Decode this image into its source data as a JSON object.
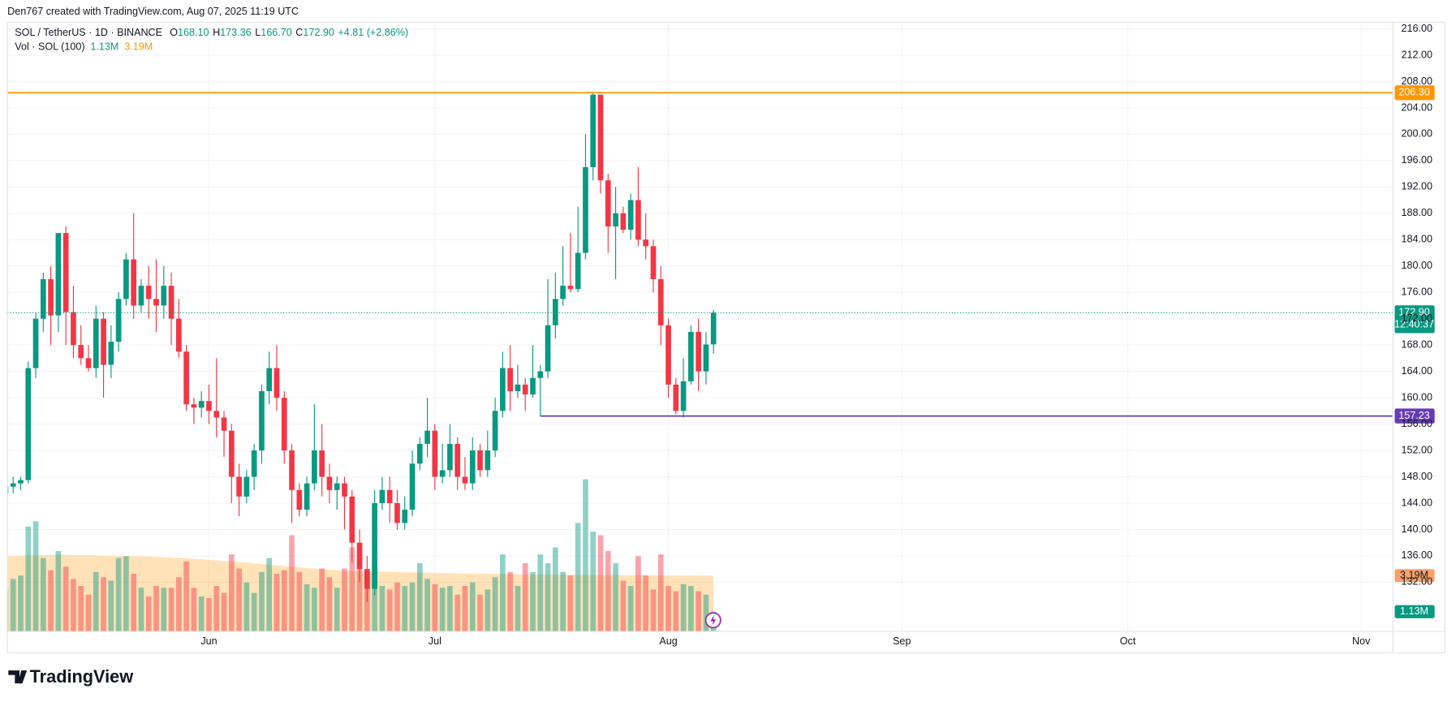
{
  "header": "Den767 created with TradingView.com, Aug 07, 2025 11:19 UTC",
  "brand": "TradingView",
  "chart_data": {
    "type": "candlestick",
    "symbol": "SOL / TetherUS · 1D · BINANCE",
    "legend_ohlc": [
      {
        "key": "O",
        "value": "168.10"
      },
      {
        "key": "H",
        "value": "173.36"
      },
      {
        "key": "L",
        "value": "166.70"
      },
      {
        "key": "C",
        "value": "172.90"
      }
    ],
    "change": "+4.81 (+2.86%)",
    "volume_title": "Vol · SOL (100)",
    "up_color": "#089981",
    "down_color": "#f23645",
    "open": [
      145.5,
      146.5,
      147,
      147.5,
      164.5,
      172,
      178,
      172.5,
      185,
      173,
      168,
      166,
      164.5,
      172,
      165,
      168.5,
      175,
      181,
      174,
      177,
      175,
      174,
      177,
      172,
      167,
      159,
      158.5,
      159.5,
      158,
      157,
      155,
      148,
      145,
      148,
      152,
      161,
      164.5,
      160,
      152,
      146,
      143,
      147,
      152,
      148,
      146,
      147,
      145,
      138,
      134,
      131,
      144,
      146,
      144,
      141,
      143,
      150,
      153,
      155,
      148,
      149,
      153,
      148,
      147,
      152,
      149,
      152,
      158,
      164.5,
      161,
      162,
      160.5,
      163,
      164,
      171,
      175,
      177,
      176.5,
      182,
      195,
      206,
      193,
      186,
      188,
      185.5,
      190,
      184,
      183,
      178,
      171,
      162,
      158,
      162.5,
      170,
      164,
      168.1
    ],
    "high": [
      147.5,
      148,
      148,
      165.5,
      173,
      179,
      180,
      185,
      186,
      177,
      171,
      168,
      174,
      173,
      171,
      176,
      182,
      188,
      178,
      180,
      181,
      180,
      179,
      175,
      168,
      160,
      161,
      162,
      166,
      158,
      156,
      150,
      149,
      153,
      162,
      167,
      168,
      161,
      153,
      147,
      148,
      159,
      156,
      150,
      148,
      148,
      146,
      140,
      136,
      146,
      148,
      148,
      146,
      145,
      152,
      154,
      160,
      156,
      153,
      156,
      154,
      151,
      154,
      153,
      155,
      160,
      167,
      168,
      165,
      163,
      168,
      165,
      178,
      179,
      183,
      185,
      189,
      200,
      206.3,
      206,
      194,
      192,
      189,
      191,
      195,
      188,
      184,
      180,
      172,
      163,
      166,
      171,
      172,
      170,
      173.36
    ],
    "low": [
      143,
      145.5,
      146,
      147,
      163,
      170,
      168,
      170,
      168,
      166,
      165,
      164,
      163,
      160,
      163,
      167,
      174,
      172,
      173,
      172,
      170,
      172,
      168,
      166,
      158,
      156,
      157,
      156,
      154,
      151,
      144,
      142,
      144,
      146,
      150,
      159,
      158,
      150,
      141,
      142,
      142,
      146,
      145,
      144,
      143,
      140,
      135,
      132,
      129,
      130,
      143,
      141,
      140,
      140,
      142,
      149,
      151,
      146,
      147,
      148,
      146,
      146,
      146,
      148,
      148,
      151,
      157,
      158,
      160,
      158,
      160,
      157.23,
      163,
      169,
      174,
      176,
      176,
      181,
      193,
      191,
      182,
      178,
      185,
      184,
      183,
      181,
      176,
      168,
      160,
      157.5,
      157,
      162,
      161,
      162,
      166.7
    ],
    "close": [
      146.5,
      147,
      147.5,
      164.5,
      172,
      178,
      172.5,
      185,
      173,
      168,
      166,
      164.5,
      172,
      165,
      168.5,
      175,
      181,
      174,
      177,
      175,
      174,
      177,
      172,
      167,
      159,
      158.5,
      159.5,
      158,
      157,
      155,
      148,
      145,
      148,
      152,
      161,
      164.5,
      160,
      152,
      146,
      143,
      147,
      152,
      148,
      146,
      147,
      145,
      138,
      134,
      131,
      144,
      146,
      144,
      141,
      143,
      150,
      153,
      155,
      148,
      149,
      153,
      148,
      147,
      152,
      149,
      152,
      158,
      164.5,
      161,
      162,
      160.5,
      163,
      164,
      171,
      175,
      177,
      176.5,
      182,
      195,
      206,
      193,
      186,
      188,
      185.5,
      190,
      184,
      183,
      178,
      171,
      162,
      158,
      162.5,
      170,
      164,
      168.09,
      172.9
    ],
    "volume": [
      2.5,
      3.0,
      3.2,
      6.0,
      6.3,
      4.2,
      3.5,
      4.6,
      3.7,
      3.0,
      2.6,
      2.1,
      3.4,
      3.1,
      2.9,
      4.2,
      4.3,
      3.3,
      2.5,
      2.0,
      2.6,
      2.5,
      2.5,
      3.1,
      4.0,
      2.5,
      2.0,
      1.9,
      2.6,
      2.2,
      4.4,
      3.6,
      2.8,
      2.2,
      3.4,
      4.2,
      3.3,
      3.5,
      5.5,
      3.4,
      2.7,
      2.5,
      3.6,
      3.1,
      2.5,
      3.6,
      4.8,
      4.2,
      3.4,
      3.9,
      2.6,
      2.4,
      2.8,
      2.6,
      2.8,
      3.9,
      3.0,
      2.7,
      2.5,
      2.6,
      2.1,
      2.6,
      2.8,
      2.1,
      2.4,
      3.1,
      4.4,
      3.4,
      2.6,
      3.9,
      3.4,
      4.4,
      3.9,
      4.8,
      3.4,
      3.2,
      6.2,
      8.7,
      5.7,
      5.5,
      4.6,
      3.9,
      2.9,
      2.6,
      4.3,
      3.2,
      2.4,
      4.4,
      2.6,
      2.3,
      2.7,
      2.6,
      2.3,
      2.1,
      1.13
    ],
    "volume_ma": [
      4.3,
      4.31,
      4.32,
      4.34,
      4.36,
      4.37,
      4.38,
      4.38,
      4.38,
      4.37,
      4.36,
      4.35,
      4.34,
      4.33,
      4.33,
      4.32,
      4.31,
      4.3,
      4.29,
      4.28,
      4.26,
      4.24,
      4.22,
      4.2,
      4.18,
      4.15,
      4.12,
      4.09,
      4.06,
      4.03,
      4.0,
      3.97,
      3.94,
      3.9,
      3.86,
      3.82,
      3.78,
      3.74,
      3.7,
      3.66,
      3.62,
      3.59,
      3.56,
      3.53,
      3.5,
      3.48,
      3.46,
      3.45,
      3.44,
      3.43,
      3.42,
      3.41,
      3.4,
      3.39,
      3.38,
      3.37,
      3.36,
      3.35,
      3.34,
      3.33,
      3.32,
      3.31,
      3.3,
      3.3,
      3.29,
      3.29,
      3.28,
      3.28,
      3.27,
      3.27,
      3.26,
      3.26,
      3.25,
      3.25,
      3.25,
      3.24,
      3.24,
      3.24,
      3.24,
      3.23,
      3.23,
      3.23,
      3.22,
      3.22,
      3.22,
      3.21,
      3.21,
      3.21,
      3.2,
      3.2,
      3.2,
      3.2,
      3.19,
      3.19,
      3.19
    ],
    "last_volume": {
      "value": 1.13,
      "label": "1.13M"
    },
    "last_volume_ma": {
      "value": 3.19,
      "label": "3.19M"
    },
    "volume_ylim": [
      0,
      12
    ],
    "xlim": [
      0.24,
      184.2
    ],
    "xticks": [
      {
        "value": 27,
        "label": "Jun"
      },
      {
        "value": 57,
        "label": "Jul"
      },
      {
        "value": 88,
        "label": "Aug"
      },
      {
        "value": 119,
        "label": "Sep"
      },
      {
        "value": 149,
        "label": "Oct"
      },
      {
        "value": 180,
        "label": "Nov"
      }
    ],
    "ylim": [
      124.53,
      216.99
    ],
    "yticks": [
      {
        "value": 132,
        "label": "132.00"
      },
      {
        "value": 136,
        "label": "136.00"
      },
      {
        "value": 140,
        "label": "140.00"
      },
      {
        "value": 144,
        "label": "144.00"
      },
      {
        "value": 148,
        "label": "148.00"
      },
      {
        "value": 152,
        "label": "152.00"
      },
      {
        "value": 156,
        "label": "156.00"
      },
      {
        "value": 160,
        "label": "160.00"
      },
      {
        "value": 164,
        "label": "164.00"
      },
      {
        "value": 168,
        "label": "168.00"
      },
      {
        "value": 172,
        "label": "172.00"
      },
      {
        "value": 176,
        "label": "176.00"
      },
      {
        "value": 180,
        "label": "180.00"
      },
      {
        "value": 184,
        "label": "184.00"
      },
      {
        "value": 188,
        "label": "188.00"
      },
      {
        "value": 192,
        "label": "192.00"
      },
      {
        "value": 196,
        "label": "196.00"
      },
      {
        "value": 200,
        "label": "200.00"
      },
      {
        "value": 204,
        "label": "204.00"
      },
      {
        "value": 208,
        "label": "208.00"
      },
      {
        "value": 212,
        "label": "212.00"
      },
      {
        "value": 216,
        "label": "216.00"
      }
    ],
    "grid": true,
    "levels": [
      {
        "value": 206.3,
        "label": "206.30",
        "color": "#ff9800"
      },
      {
        "value": 157.23,
        "label": "157.23",
        "color": "#673ab7",
        "start": 71
      }
    ],
    "last_price": {
      "value": 172.9,
      "label": "172.90",
      "countdown": "12:40:37",
      "color": "#089981"
    }
  }
}
